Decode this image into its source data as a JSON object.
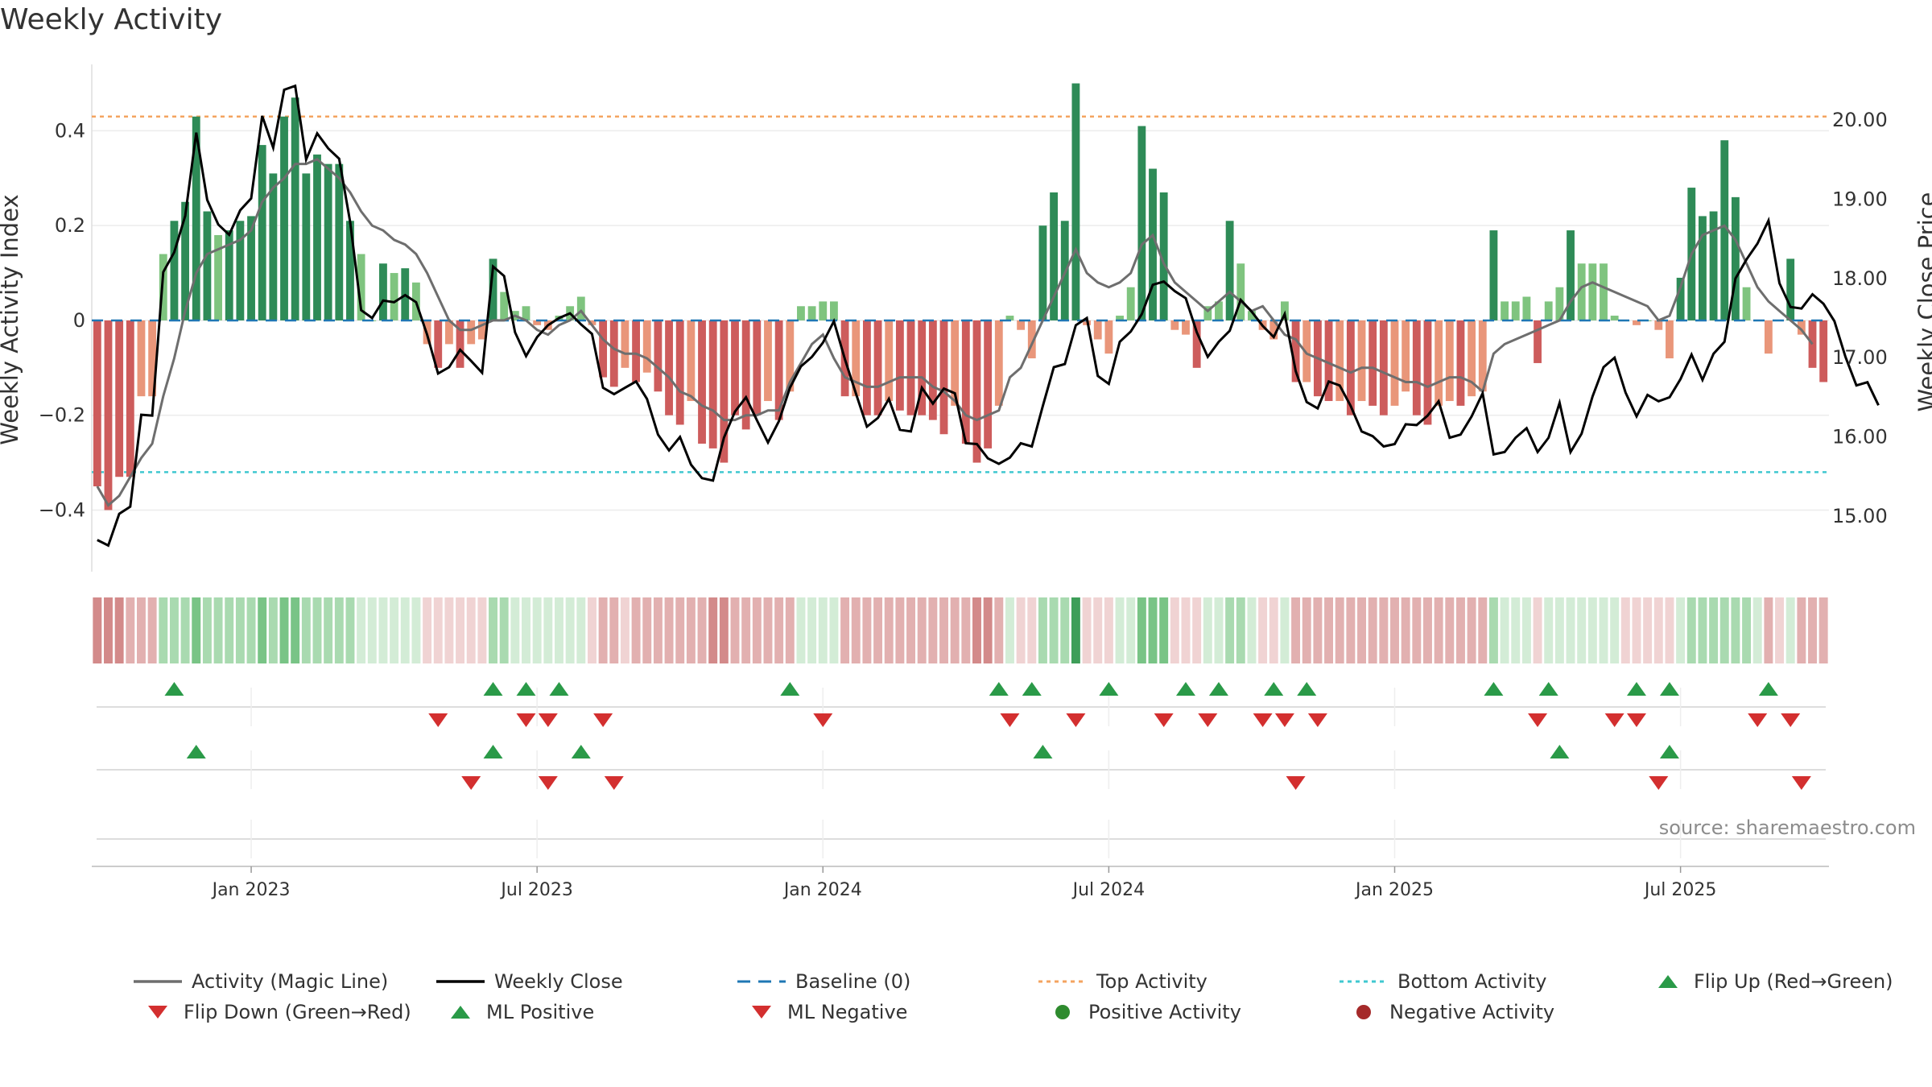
{
  "title": "Weekly Activity",
  "source": "source: sharemaestro.com",
  "colors": {
    "green_strong": "#2e8b57",
    "green_light": "#7fc47f",
    "red_strong": "#cd5c5c",
    "red_light": "#e9967a",
    "magic_line": "#6e6e6e",
    "close_line": "#000000",
    "baseline": "#1f77b4",
    "top": "#f4a460",
    "bottom": "#40c8d0",
    "marker_up": "#2a9a48",
    "marker_down": "#d32f2f",
    "pos_dot": "#2e8b2e",
    "neg_dot": "#a52a2a"
  },
  "chart_data": {
    "type": "bar",
    "title": "Weekly Activity",
    "ylabel": "Weekly Activity Index",
    "y2label": "Weekly Close Price",
    "ylim": [
      -0.53,
      0.54
    ],
    "y2lim": [
      14.3,
      20.7
    ],
    "yticks": [
      -0.4,
      -0.2,
      0,
      0.2,
      0.4
    ],
    "ytick_labels": [
      "−0.4",
      "−0.2",
      "0",
      "0.2",
      "0.4"
    ],
    "y2ticks": [
      15,
      16,
      17,
      18,
      19,
      20
    ],
    "y2tick_labels": [
      "15.00",
      "16.00",
      "17.00",
      "18.00",
      "19.00",
      "20.00"
    ],
    "xticks": [
      {
        "label": "Jan 2023",
        "week": 14
      },
      {
        "label": "Jul 2023",
        "week": 40
      },
      {
        "label": "Jan 2024",
        "week": 66
      },
      {
        "label": "Jul 2024",
        "week": 92
      },
      {
        "label": "Jan 2025",
        "week": 118
      },
      {
        "label": "Jul 2025",
        "week": 144
      }
    ],
    "top_activity": 0.43,
    "bottom_activity": -0.32,
    "baseline": 0,
    "activity": [
      -0.35,
      -0.4,
      -0.33,
      -0.33,
      -0.16,
      -0.16,
      0.14,
      0.21,
      0.25,
      0.43,
      0.23,
      0.18,
      0.19,
      0.21,
      0.22,
      0.37,
      0.31,
      0.43,
      0.47,
      0.31,
      0.35,
      0.33,
      0.33,
      0.21,
      0.14,
      0.0,
      0.12,
      0.1,
      0.11,
      0.08,
      -0.05,
      -0.1,
      -0.05,
      -0.1,
      -0.05,
      -0.04,
      0.13,
      0.06,
      0.02,
      0.03,
      -0.01,
      -0.02,
      0.01,
      0.03,
      0.05,
      -0.01,
      -0.12,
      -0.14,
      -0.1,
      -0.13,
      -0.11,
      -0.15,
      -0.2,
      -0.22,
      -0.17,
      -0.26,
      -0.27,
      -0.3,
      -0.2,
      -0.23,
      -0.2,
      -0.17,
      -0.21,
      -0.15,
      0.03,
      0.03,
      0.04,
      0.04,
      -0.16,
      -0.16,
      -0.2,
      -0.2,
      -0.17,
      -0.19,
      -0.2,
      -0.2,
      -0.21,
      -0.24,
      -0.18,
      -0.26,
      -0.3,
      -0.27,
      -0.18,
      0.01,
      -0.02,
      -0.08,
      0.2,
      0.27,
      0.21,
      0.5,
      -0.01,
      -0.04,
      -0.07,
      0.01,
      0.07,
      0.41,
      0.32,
      0.27,
      -0.02,
      -0.03,
      -0.1,
      0.03,
      0.04,
      0.21,
      0.12,
      0.02,
      -0.02,
      -0.04,
      0.04,
      -0.13,
      -0.13,
      -0.16,
      -0.17,
      -0.17,
      -0.2,
      -0.17,
      -0.18,
      -0.2,
      -0.18,
      -0.15,
      -0.2,
      -0.22,
      -0.18,
      -0.17,
      -0.18,
      -0.16,
      -0.15,
      0.19,
      0.04,
      0.04,
      0.05,
      -0.09,
      0.04,
      0.07,
      0.19,
      0.12,
      0.12,
      0.12,
      0.01,
      0.0,
      -0.01,
      0.0,
      -0.02,
      -0.08,
      0.09,
      0.28,
      0.22,
      0.23,
      0.38,
      0.26,
      0.07,
      0.0,
      -0.07,
      0.0,
      0.13,
      -0.03,
      -0.1,
      -0.13
    ],
    "magic_line": [
      -0.35,
      -0.39,
      -0.37,
      -0.33,
      -0.29,
      -0.26,
      -0.16,
      -0.08,
      0.02,
      0.1,
      0.14,
      0.15,
      0.16,
      0.17,
      0.19,
      0.25,
      0.28,
      0.3,
      0.33,
      0.33,
      0.34,
      0.32,
      0.3,
      0.27,
      0.23,
      0.2,
      0.19,
      0.17,
      0.16,
      0.14,
      0.1,
      0.05,
      0.0,
      -0.02,
      -0.02,
      -0.01,
      0.0,
      0.0,
      0.01,
      0.0,
      -0.02,
      -0.03,
      -0.01,
      0.0,
      0.02,
      -0.01,
      -0.04,
      -0.06,
      -0.07,
      -0.07,
      -0.08,
      -0.1,
      -0.12,
      -0.15,
      -0.16,
      -0.18,
      -0.19,
      -0.21,
      -0.21,
      -0.2,
      -0.2,
      -0.19,
      -0.19,
      -0.13,
      -0.09,
      -0.05,
      -0.03,
      -0.08,
      -0.12,
      -0.13,
      -0.14,
      -0.14,
      -0.13,
      -0.12,
      -0.12,
      -0.12,
      -0.14,
      -0.15,
      -0.17,
      -0.2,
      -0.21,
      -0.2,
      -0.19,
      -0.12,
      -0.1,
      -0.05,
      0.0,
      0.05,
      0.1,
      0.15,
      0.1,
      0.08,
      0.07,
      0.08,
      0.1,
      0.16,
      0.18,
      0.12,
      0.08,
      0.06,
      0.04,
      0.02,
      0.04,
      0.06,
      0.04,
      0.02,
      0.03,
      0.0,
      -0.03,
      -0.04,
      -0.07,
      -0.08,
      -0.09,
      -0.1,
      -0.11,
      -0.1,
      -0.1,
      -0.11,
      -0.12,
      -0.13,
      -0.13,
      -0.14,
      -0.13,
      -0.12,
      -0.12,
      -0.13,
      -0.15,
      -0.07,
      -0.05,
      -0.04,
      -0.03,
      -0.02,
      -0.01,
      0.0,
      0.04,
      0.07,
      0.08,
      0.07,
      0.06,
      0.05,
      0.04,
      0.03,
      0.0,
      0.01,
      0.07,
      0.14,
      0.18,
      0.19,
      0.2,
      0.17,
      0.12,
      0.07,
      0.04,
      0.02,
      0.0,
      -0.02,
      -0.05
    ],
    "weekly_close": [
      14.7,
      14.63,
      15.03,
      15.12,
      16.28,
      16.27,
      18.08,
      18.33,
      18.79,
      19.84,
      18.99,
      18.68,
      18.55,
      18.86,
      19.01,
      20.05,
      19.65,
      20.38,
      20.43,
      19.5,
      19.83,
      19.64,
      19.51,
      18.71,
      17.6,
      17.5,
      17.72,
      17.7,
      17.79,
      17.7,
      17.29,
      16.8,
      16.88,
      17.1,
      16.96,
      16.81,
      18.15,
      18.03,
      17.32,
      17.02,
      17.26,
      17.41,
      17.5,
      17.56,
      17.42,
      17.3,
      16.62,
      16.54,
      16.62,
      16.7,
      16.48,
      16.03,
      15.83,
      16.0,
      15.65,
      15.48,
      15.45,
      15.99,
      16.32,
      16.5,
      16.21,
      15.93,
      16.2,
      16.62,
      16.89,
      17.01,
      17.19,
      17.46,
      16.98,
      16.55,
      16.13,
      16.24,
      16.48,
      16.09,
      16.07,
      16.62,
      16.42,
      16.61,
      16.55,
      15.92,
      15.91,
      15.73,
      15.66,
      15.74,
      15.92,
      15.88,
      16.39,
      16.88,
      16.92,
      17.41,
      17.5,
      16.77,
      16.67,
      17.2,
      17.33,
      17.55,
      17.92,
      17.96,
      17.84,
      17.75,
      17.32,
      17.01,
      17.2,
      17.34,
      17.73,
      17.58,
      17.4,
      17.26,
      17.55,
      16.83,
      16.44,
      16.36,
      16.7,
      16.65,
      16.39,
      16.07,
      16.01,
      15.88,
      15.91,
      16.16,
      16.15,
      16.27,
      16.45,
      15.99,
      16.03,
      16.26,
      16.55,
      15.78,
      15.81,
      15.99,
      16.11,
      15.81,
      15.99,
      16.43,
      15.81,
      16.04,
      16.51,
      16.88,
      17.0,
      16.56,
      16.26,
      16.53,
      16.45,
      16.5,
      16.73,
      17.04,
      16.72,
      17.05,
      17.2,
      18.0,
      18.24,
      18.44,
      18.73,
      17.94,
      17.64,
      17.62,
      17.8,
      17.68,
      17.46,
      17.01,
      16.65,
      16.69,
      16.4
    ],
    "band_shades": [
      -3,
      -3,
      -3,
      -2,
      -2,
      -2,
      2,
      2,
      2,
      3,
      2,
      2,
      2,
      2,
      2,
      3,
      2,
      3,
      3,
      2,
      2,
      2,
      2,
      2,
      1,
      1,
      1,
      1,
      1,
      1,
      -1,
      -1,
      -1,
      -1,
      -1,
      -1,
      2,
      2,
      1,
      1,
      1,
      1,
      1,
      1,
      1,
      -1,
      -2,
      -2,
      -1,
      -2,
      -2,
      -2,
      -2,
      -2,
      -2,
      -2,
      -3,
      -3,
      -2,
      -2,
      -2,
      -2,
      -2,
      -2,
      1,
      1,
      1,
      1,
      -2,
      -2,
      -2,
      -2,
      -2,
      -2,
      -2,
      -2,
      -2,
      -2,
      -2,
      -2,
      -3,
      -3,
      -2,
      1,
      -1,
      -1,
      2,
      2,
      2,
      4,
      -1,
      -1,
      -1,
      1,
      1,
      3,
      3,
      3,
      -1,
      -1,
      -1,
      1,
      1,
      2,
      2,
      1,
      -1,
      -1,
      1,
      -2,
      -2,
      -2,
      -2,
      -2,
      -2,
      -2,
      -2,
      -2,
      -2,
      -2,
      -2,
      -2,
      -2,
      -2,
      -2,
      -2,
      -2,
      2,
      1,
      1,
      1,
      -1,
      1,
      1,
      1,
      1,
      1,
      1,
      1,
      -1,
      -1,
      -1,
      -1,
      -1,
      1,
      2,
      2,
      2,
      2,
      2,
      2,
      1,
      -2,
      -1,
      1,
      -2,
      -2,
      -2
    ],
    "marker_rows": [
      {
        "up": [
          7,
          36,
          39,
          42,
          63,
          82,
          85,
          92,
          99,
          102,
          107,
          110,
          127,
          132,
          140,
          143,
          152
        ],
        "down": [
          31,
          39,
          41,
          46,
          66,
          83,
          89,
          97,
          101,
          106,
          108,
          111,
          131,
          138,
          140,
          151,
          154
        ]
      },
      {
        "up": [
          9,
          36,
          44,
          86,
          133,
          143
        ],
        "down": [
          34,
          41,
          47,
          109,
          142,
          155
        ]
      },
      {
        "up": [],
        "down": []
      }
    ]
  },
  "legend": [
    {
      "label": "Activity (Magic Line)",
      "symbol": "line"
    },
    {
      "label": "Weekly Close",
      "symbol": "line"
    },
    {
      "label": "Baseline (0)",
      "symbol": "dash"
    },
    {
      "label": "Top Activity",
      "symbol": "dot-line"
    },
    {
      "label": "Bottom Activity",
      "symbol": "dot-line"
    },
    {
      "label": "Flip Up (Red→Green)",
      "symbol": "triangle-up"
    },
    {
      "label": "Flip Down (Green→Red)",
      "symbol": "triangle-down"
    },
    {
      "label": "ML Positive",
      "symbol": "triangle-up"
    },
    {
      "label": "ML Negative",
      "symbol": "triangle-down"
    },
    {
      "label": "Positive Activity",
      "symbol": "circle"
    },
    {
      "label": "Negative Activity",
      "symbol": "circle"
    }
  ]
}
